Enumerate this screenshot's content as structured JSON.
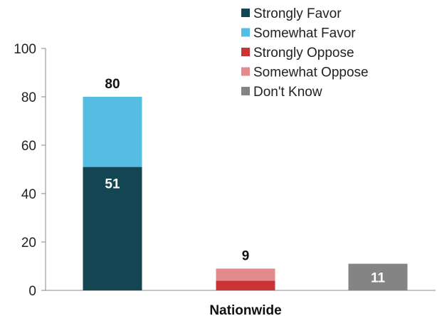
{
  "chart_data": {
    "type": "bar",
    "stacked": true,
    "xlabel": "Nationwide",
    "ylabel": "",
    "ylim": [
      0,
      100
    ],
    "yticks": [
      0,
      20,
      40,
      60,
      80,
      100
    ],
    "legend_position": "top-right",
    "series": [
      {
        "name": "Strongly Favor",
        "color": "#134552"
      },
      {
        "name": "Somewhat Favor",
        "color": "#55bde1"
      },
      {
        "name": "Strongly Oppose",
        "color": "#cc3333"
      },
      {
        "name": "Somewhat Oppose",
        "color": "#e38a8b"
      },
      {
        "name": "Don't Know",
        "color": "#848484"
      }
    ],
    "bars": [
      {
        "segments": [
          {
            "series": "Strongly Favor",
            "value": 51,
            "label": "51"
          },
          {
            "series": "Somewhat Favor",
            "value": 29
          }
        ],
        "total_label": "80"
      },
      {
        "segments": [
          {
            "series": "Strongly Oppose",
            "value": 4
          },
          {
            "series": "Somewhat Oppose",
            "value": 5
          }
        ],
        "total_label": "9"
      },
      {
        "segments": [
          {
            "series": "Don't Know",
            "value": 11,
            "label": "11"
          }
        ]
      }
    ]
  }
}
